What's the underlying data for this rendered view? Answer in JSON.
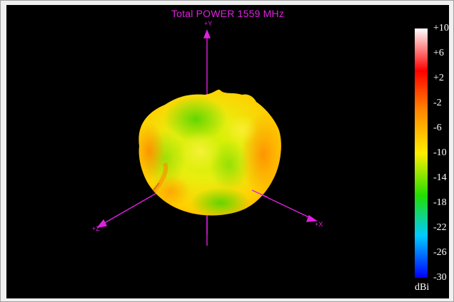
{
  "title": "Total POWER 1559  MHz",
  "axes": {
    "y": "+Y",
    "z": "+Z",
    "x": "+X"
  },
  "colorbar": {
    "ticks": [
      "+10",
      "+6",
      "+2",
      "-2",
      "-6",
      "-10",
      "-14",
      "-18",
      "-22",
      "-26",
      "-30"
    ],
    "unit": "dBi",
    "range": [
      -30,
      10
    ],
    "colors": [
      "#ffffff",
      "#ff0000",
      "#ff8800",
      "#ffee00",
      "#22dd00",
      "#00ccff",
      "#0000ff"
    ]
  },
  "colors": {
    "axis": "#e020e0",
    "background": "#000000"
  }
}
